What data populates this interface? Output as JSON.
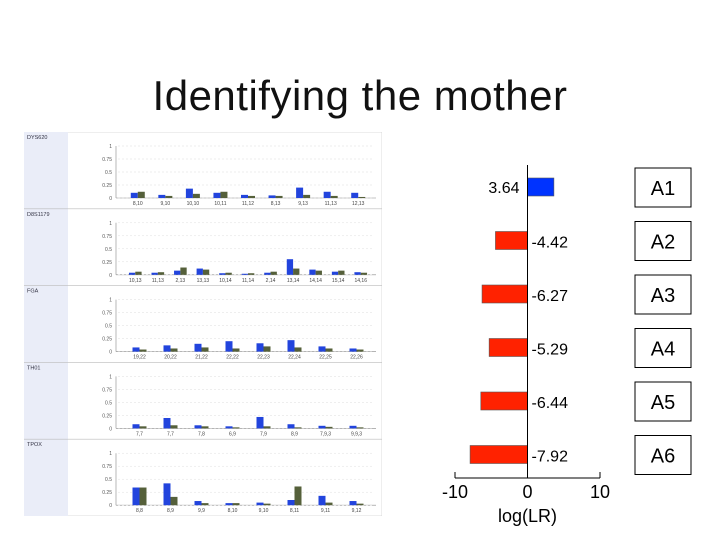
{
  "title": "Identifying the mother",
  "chart_data": [
    {
      "type": "bar",
      "panels": [
        {
          "marker": "DYS620",
          "yticks": [
            "1",
            "0.75",
            "0.5",
            "0.25",
            "0"
          ],
          "alleles": [
            "8,10",
            "9,10",
            "10,10",
            "10,11",
            "11,12",
            "8,13",
            "9,13",
            "11,13",
            "12,13"
          ],
          "series": [
            {
              "color": "#2244dd",
              "values": [
                0.1,
                0.06,
                0.18,
                0.1,
                0.06,
                0.05,
                0.2,
                0.12,
                0.1
              ]
            },
            {
              "color": "#55603a",
              "values": [
                0.12,
                0.04,
                0.08,
                0.12,
                0.04,
                0.04,
                0.06,
                0.04,
                0.02
              ]
            }
          ]
        },
        {
          "marker": "D8S1179",
          "yticks": [
            "1",
            "0.75",
            "0.5",
            "0.25",
            "0"
          ],
          "alleles": [
            "10,13",
            "11,13",
            "2,13",
            "13,13",
            "10,14",
            "11,14",
            "2,14",
            "13,14",
            "14,14",
            "15,14",
            "14,16"
          ],
          "series": [
            {
              "color": "#2244dd",
              "values": [
                0.04,
                0.04,
                0.08,
                0.12,
                0.03,
                0.02,
                0.04,
                0.3,
                0.1,
                0.06,
                0.05
              ]
            },
            {
              "color": "#55603a",
              "values": [
                0.06,
                0.05,
                0.14,
                0.1,
                0.04,
                0.03,
                0.06,
                0.12,
                0.08,
                0.08,
                0.04
              ]
            }
          ]
        },
        {
          "marker": "FGA",
          "yticks": [
            "1",
            "0.75",
            "0.5",
            "0.25",
            "0"
          ],
          "alleles": [
            "19,22",
            "20,22",
            "21,22",
            "22,22",
            "22,23",
            "22,24",
            "22,25",
            "22,26"
          ],
          "series": [
            {
              "color": "#2244dd",
              "values": [
                0.08,
                0.12,
                0.15,
                0.2,
                0.16,
                0.22,
                0.1,
                0.06
              ]
            },
            {
              "color": "#55603a",
              "values": [
                0.04,
                0.06,
                0.08,
                0.06,
                0.1,
                0.08,
                0.06,
                0.04
              ]
            }
          ]
        },
        {
          "marker": "TH01",
          "yticks": [
            "1",
            "0.75",
            "0.5",
            "0.25",
            "0"
          ],
          "alleles": [
            "7,7",
            "7,7",
            "7,8",
            "6,9",
            "7,9",
            "8,9",
            "7,9,3",
            "9,9,3"
          ],
          "series": [
            {
              "color": "#2244dd",
              "values": [
                0.08,
                0.2,
                0.06,
                0.04,
                0.22,
                0.08,
                0.05,
                0.05
              ]
            },
            {
              "color": "#55603a",
              "values": [
                0.04,
                0.06,
                0.04,
                0.02,
                0.04,
                0.02,
                0.03,
                0.02
              ]
            }
          ]
        },
        {
          "marker": "TPOX",
          "yticks": [
            "1",
            "0.75",
            "0.5",
            "0.25",
            "0"
          ],
          "alleles": [
            "8,8",
            "8,9",
            "9,9",
            "8,10",
            "9,10",
            "8,11",
            "9,11",
            "9,12"
          ],
          "series": [
            {
              "color": "#2244dd",
              "values": [
                0.34,
                0.42,
                0.08,
                0.04,
                0.05,
                0.1,
                0.18,
                0.08
              ]
            },
            {
              "color": "#55603a",
              "values": [
                0.34,
                0.16,
                0.04,
                0.04,
                0.03,
                0.36,
                0.05,
                0.03
              ]
            }
          ]
        }
      ]
    },
    {
      "type": "bar",
      "orientation": "horizontal",
      "xlabel": "log(LR)",
      "xlim": [
        -10,
        10
      ],
      "xticks": [
        "-10",
        "0",
        "10"
      ],
      "positive_color": "#0033ff",
      "negative_color": "#ff2200",
      "items": [
        {
          "label": "A1",
          "value": 3.64,
          "text": "3.64"
        },
        {
          "label": "A2",
          "value": -4.42,
          "text": "-4.42"
        },
        {
          "label": "A3",
          "value": -6.27,
          "text": "-6.27"
        },
        {
          "label": "A4",
          "value": -5.29,
          "text": "-5.29"
        },
        {
          "label": "A5",
          "value": -6.44,
          "text": "-6.44"
        },
        {
          "label": "A6",
          "value": -7.92,
          "text": "-7.92"
        }
      ]
    }
  ]
}
